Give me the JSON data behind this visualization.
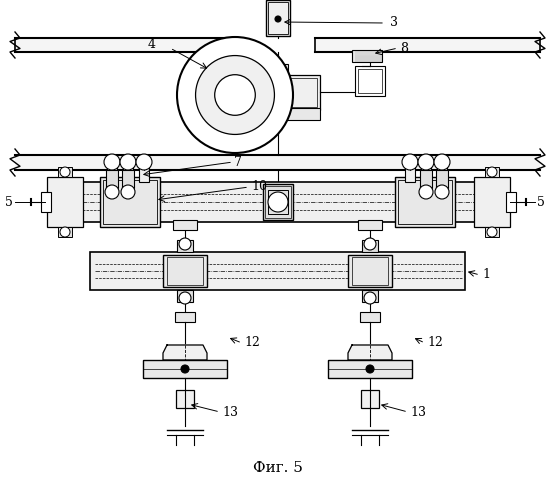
{
  "title": "Фиг. 5",
  "title_fontsize": 11,
  "fig_width": 5.57,
  "fig_height": 5.0,
  "dpi": 100,
  "bg_color": "#ffffff"
}
